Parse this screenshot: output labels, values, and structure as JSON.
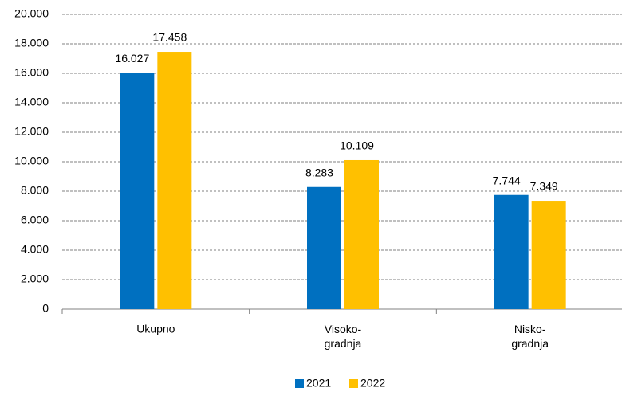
{
  "chart_data": {
    "type": "bar",
    "categories": [
      "Ukupno",
      "Visoko-\ngradnja",
      "Nisko-\ngradnja"
    ],
    "series": [
      {
        "name": "2021",
        "color": "#0070c0",
        "values": [
          16027,
          8283,
          7744
        ],
        "value_labels": [
          "16.027",
          "8.283",
          "7.744"
        ]
      },
      {
        "name": "2022",
        "color": "#ffc000",
        "values": [
          17458,
          10109,
          7349
        ],
        "value_labels": [
          "17.458",
          "10.109",
          "7.349"
        ]
      }
    ],
    "ylim": [
      0,
      20000
    ],
    "yticks": [
      0,
      {
        "value": 2000,
        "label": "2.000"
      },
      {
        "value": 4000,
        "label": "4.000"
      },
      {
        "value": 6000,
        "label": "6.000"
      },
      {
        "value": 8000,
        "label": "8.000"
      },
      {
        "value": 10000,
        "label": "10.000"
      },
      {
        "value": 12000,
        "label": "12.000"
      },
      {
        "value": 14000,
        "label": "14.000"
      },
      {
        "value": 16000,
        "label": "16.000"
      },
      {
        "value": 18000,
        "label": "18.000"
      },
      {
        "value": 20000,
        "label": "20.000"
      }
    ],
    "grid": true,
    "legend": "bottom"
  }
}
